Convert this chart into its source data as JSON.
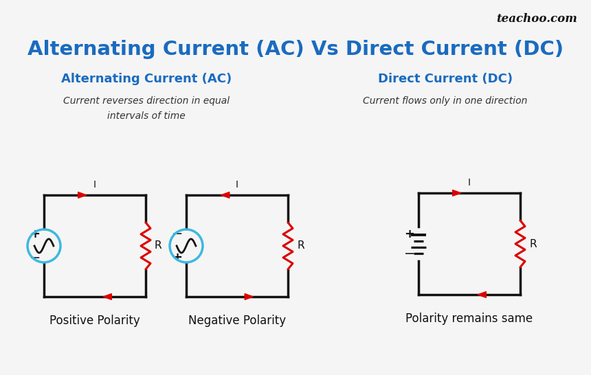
{
  "title": "Alternating Current (AC) Vs Direct Current (DC)",
  "title_color": "#1a6bbf",
  "title_fontsize": 21,
  "bg_color": "#f5f5f5",
  "watermark": "teachoo.com",
  "ac_header": "Alternating Current (AC)",
  "dc_header": "Direct Current (DC)",
  "header_color": "#1a6bbf",
  "ac_desc": "Current reverses direction in equal\nintervals of time",
  "dc_desc": "Current flows only in one direction",
  "desc_color": "#333333",
  "labels_bottom": [
    "Positive Polarity",
    "Negative Polarity",
    "Polarity remains same"
  ],
  "circuit_color": "#111111",
  "arrow_color": "#dd0000",
  "resistor_color": "#dd0000",
  "ac_source_color": "#3db8e0",
  "label_fontsize": 12,
  "fig_w": 8.6,
  "fig_h": 5.46,
  "dpi": 100
}
